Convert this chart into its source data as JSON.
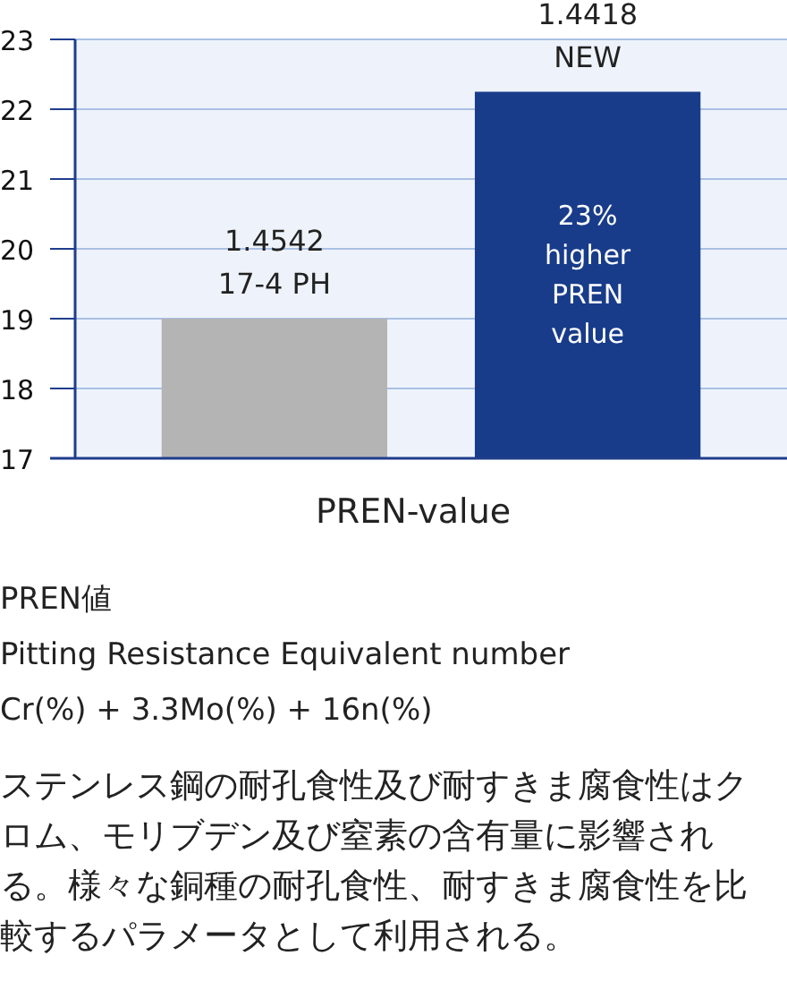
{
  "chart_data": {
    "type": "bar",
    "categories": [
      "1.4542\n17-4 PH",
      "1.4418\nNEW"
    ],
    "values": [
      19.0,
      22.25
    ],
    "colors": [
      "#b4b4b4",
      "#183c8a"
    ],
    "xlabel": "PREN-value",
    "ylim": [
      17,
      23
    ],
    "yticks": [
      17,
      18,
      19,
      20,
      21,
      22,
      23
    ],
    "grid": "y",
    "annotations": [
      "23%\nhigher\nPREN\nvalue",
      "PREN値",
      "Pitting Resistance Equivalent number",
      "Cr(%) + 3.3Mo(%) + 16n(%)",
      "ステンレス鋼の耐孔食性及び耐すきま腐食性はクロム、モリブデン及び窒素の含有量に影響される。様々な銅種の耐孔食性、耐すきま腐食性を比較するパラメータとして利用される。"
    ]
  }
}
